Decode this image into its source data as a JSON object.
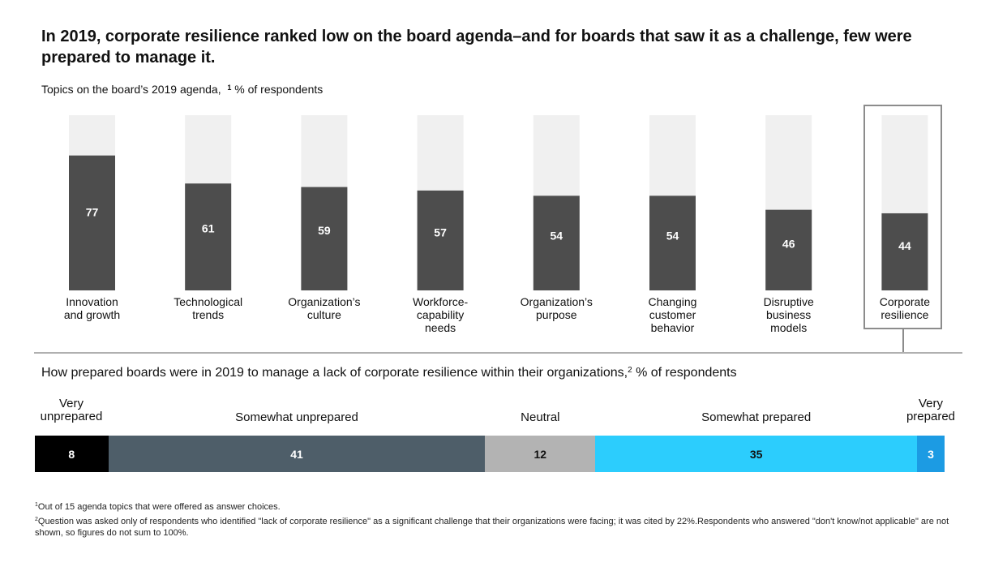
{
  "title": "In 2019, corporate resilience ranked low on the board agenda–and for boards that saw it as a challenge, few were prepared to manage it.",
  "subtitle1": {
    "text": "Topics on the board’s 2019 agenda,",
    "sup": "1",
    "unit": " % of respondents"
  },
  "subtitle2": {
    "text": "How prepared boards were in 2019 to manage a lack of corporate resilience within their organizations,",
    "sup": "2",
    "unit": " % of respondents"
  },
  "chart_data": [
    {
      "type": "bar",
      "categories": [
        [
          "Innovation",
          "and growth"
        ],
        [
          "Technological",
          "trends"
        ],
        [
          "Organization’s",
          "culture"
        ],
        [
          "Workforce-",
          "capability",
          "needs"
        ],
        [
          "Organization’s",
          "purpose"
        ],
        [
          "Changing",
          "customer",
          "behavior"
        ],
        [
          "Disruptive",
          "business",
          "models"
        ],
        [
          "Corporate",
          "resilience"
        ]
      ],
      "values": [
        77,
        61,
        59,
        57,
        54,
        54,
        46,
        44
      ],
      "ylim": [
        0,
        100
      ],
      "highlighted_category": "Corporate resilience",
      "colors": {
        "bar": "#4d4d4d",
        "track": "#f0f0f0",
        "label": "#ffffff"
      }
    },
    {
      "type": "bar",
      "orientation": "horizontal-stacked",
      "series": [
        {
          "name": "Very unprepared",
          "label_lines": [
            "Very",
            "unprepared"
          ],
          "value": 8,
          "color": "#000000",
          "text_color": "#ffffff"
        },
        {
          "name": "Somewhat unprepared",
          "label_lines": [
            "Somewhat unprepared"
          ],
          "value": 41,
          "color": "#4e5e69",
          "text_color": "#ffffff"
        },
        {
          "name": "Neutral",
          "label_lines": [
            "Neutral"
          ],
          "value": 12,
          "color": "#b3b3b3",
          "text_color": "#111111"
        },
        {
          "name": "Somewhat prepared",
          "label_lines": [
            "Somewhat prepared"
          ],
          "value": 35,
          "color": "#2ccdfd",
          "text_color": "#111111"
        },
        {
          "name": "Very prepared",
          "label_lines": [
            "Very",
            "prepared"
          ],
          "value": 3,
          "color": "#1c9be3",
          "text_color": "#ffffff"
        }
      ]
    }
  ],
  "footnotes": [
    {
      "sup": "1",
      "text": "Out of 15 agenda topics that were offered as answer choices."
    },
    {
      "sup": "2",
      "text": "Question was asked only of respondents who identified \"lack of corporate resilience\" as a significant challenge that their organizations were facing; it was cited by 22%.Respondents who answered \"don't know/not applicable\" are not shown, so figures do not sum to 100%."
    }
  ]
}
